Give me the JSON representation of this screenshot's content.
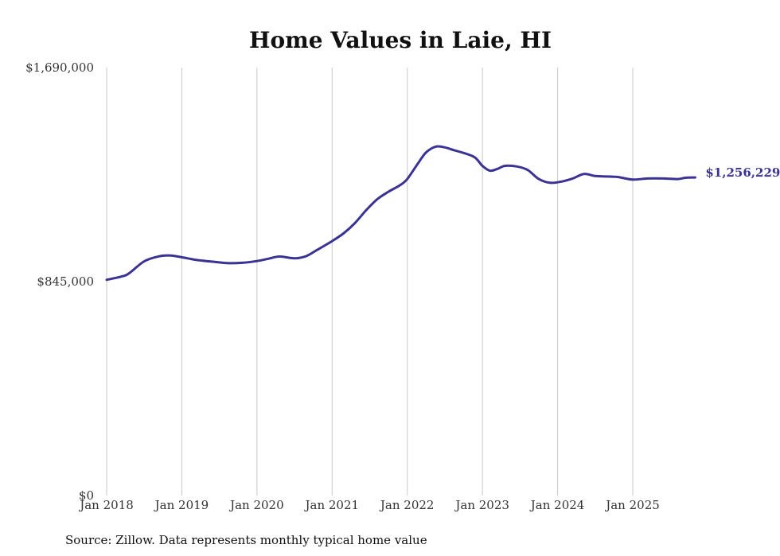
{
  "chart_data": {
    "type": "line",
    "title": "Home Values in Laie, HI",
    "source": "Source: Zillow. Data represents monthly typical home value",
    "ylim": [
      0,
      1690000
    ],
    "ytick_values": [
      0,
      845000,
      1690000
    ],
    "ytick_labels": [
      "$0",
      "$845,000",
      "$1,690,000"
    ],
    "xlim": [
      2018.0,
      2025.83
    ],
    "xtick_values": [
      2018,
      2019,
      2020,
      2021,
      2022,
      2023,
      2024,
      2025
    ],
    "xtick_labels": [
      "Jan 2018",
      "Jan 2019",
      "Jan 2020",
      "Jan 2021",
      "Jan 2022",
      "Jan 2023",
      "Jan 2024",
      "Jan 2025"
    ],
    "grid": "vertical",
    "color": "#3a3393",
    "end_label": "$1,256,229",
    "series": [
      {
        "name": "Typical home value",
        "x": [
          2018.0,
          2018.2,
          2018.3,
          2018.5,
          2018.7,
          2018.85,
          2019.0,
          2019.2,
          2019.4,
          2019.6,
          2019.8,
          2020.0,
          2020.15,
          2020.3,
          2020.5,
          2020.65,
          2020.8,
          2021.0,
          2021.15,
          2021.3,
          2021.45,
          2021.6,
          2021.75,
          2021.9,
          2022.0,
          2022.15,
          2022.25,
          2022.38,
          2022.5,
          2022.62,
          2022.75,
          2022.9,
          2023.0,
          2023.1,
          2023.2,
          2023.3,
          2023.45,
          2023.6,
          2023.75,
          2023.9,
          2024.05,
          2024.2,
          2024.35,
          2024.5,
          2024.65,
          2024.8,
          2025.0,
          2025.2,
          2025.4,
          2025.6,
          2025.7,
          2025.83
        ],
        "values": [
          852000,
          865000,
          878000,
          925000,
          945000,
          948000,
          941000,
          930000,
          924000,
          918000,
          919000,
          926000,
          935000,
          944000,
          937000,
          945000,
          970000,
          1005000,
          1035000,
          1075000,
          1126000,
          1170000,
          1200000,
          1225000,
          1250000,
          1315000,
          1355000,
          1378000,
          1375000,
          1364000,
          1353000,
          1335000,
          1302000,
          1283000,
          1290000,
          1302000,
          1300000,
          1286000,
          1250000,
          1235000,
          1240000,
          1252000,
          1270000,
          1262000,
          1260000,
          1258000,
          1248000,
          1252000,
          1252000,
          1250000,
          1255000,
          1256229
        ]
      }
    ]
  }
}
